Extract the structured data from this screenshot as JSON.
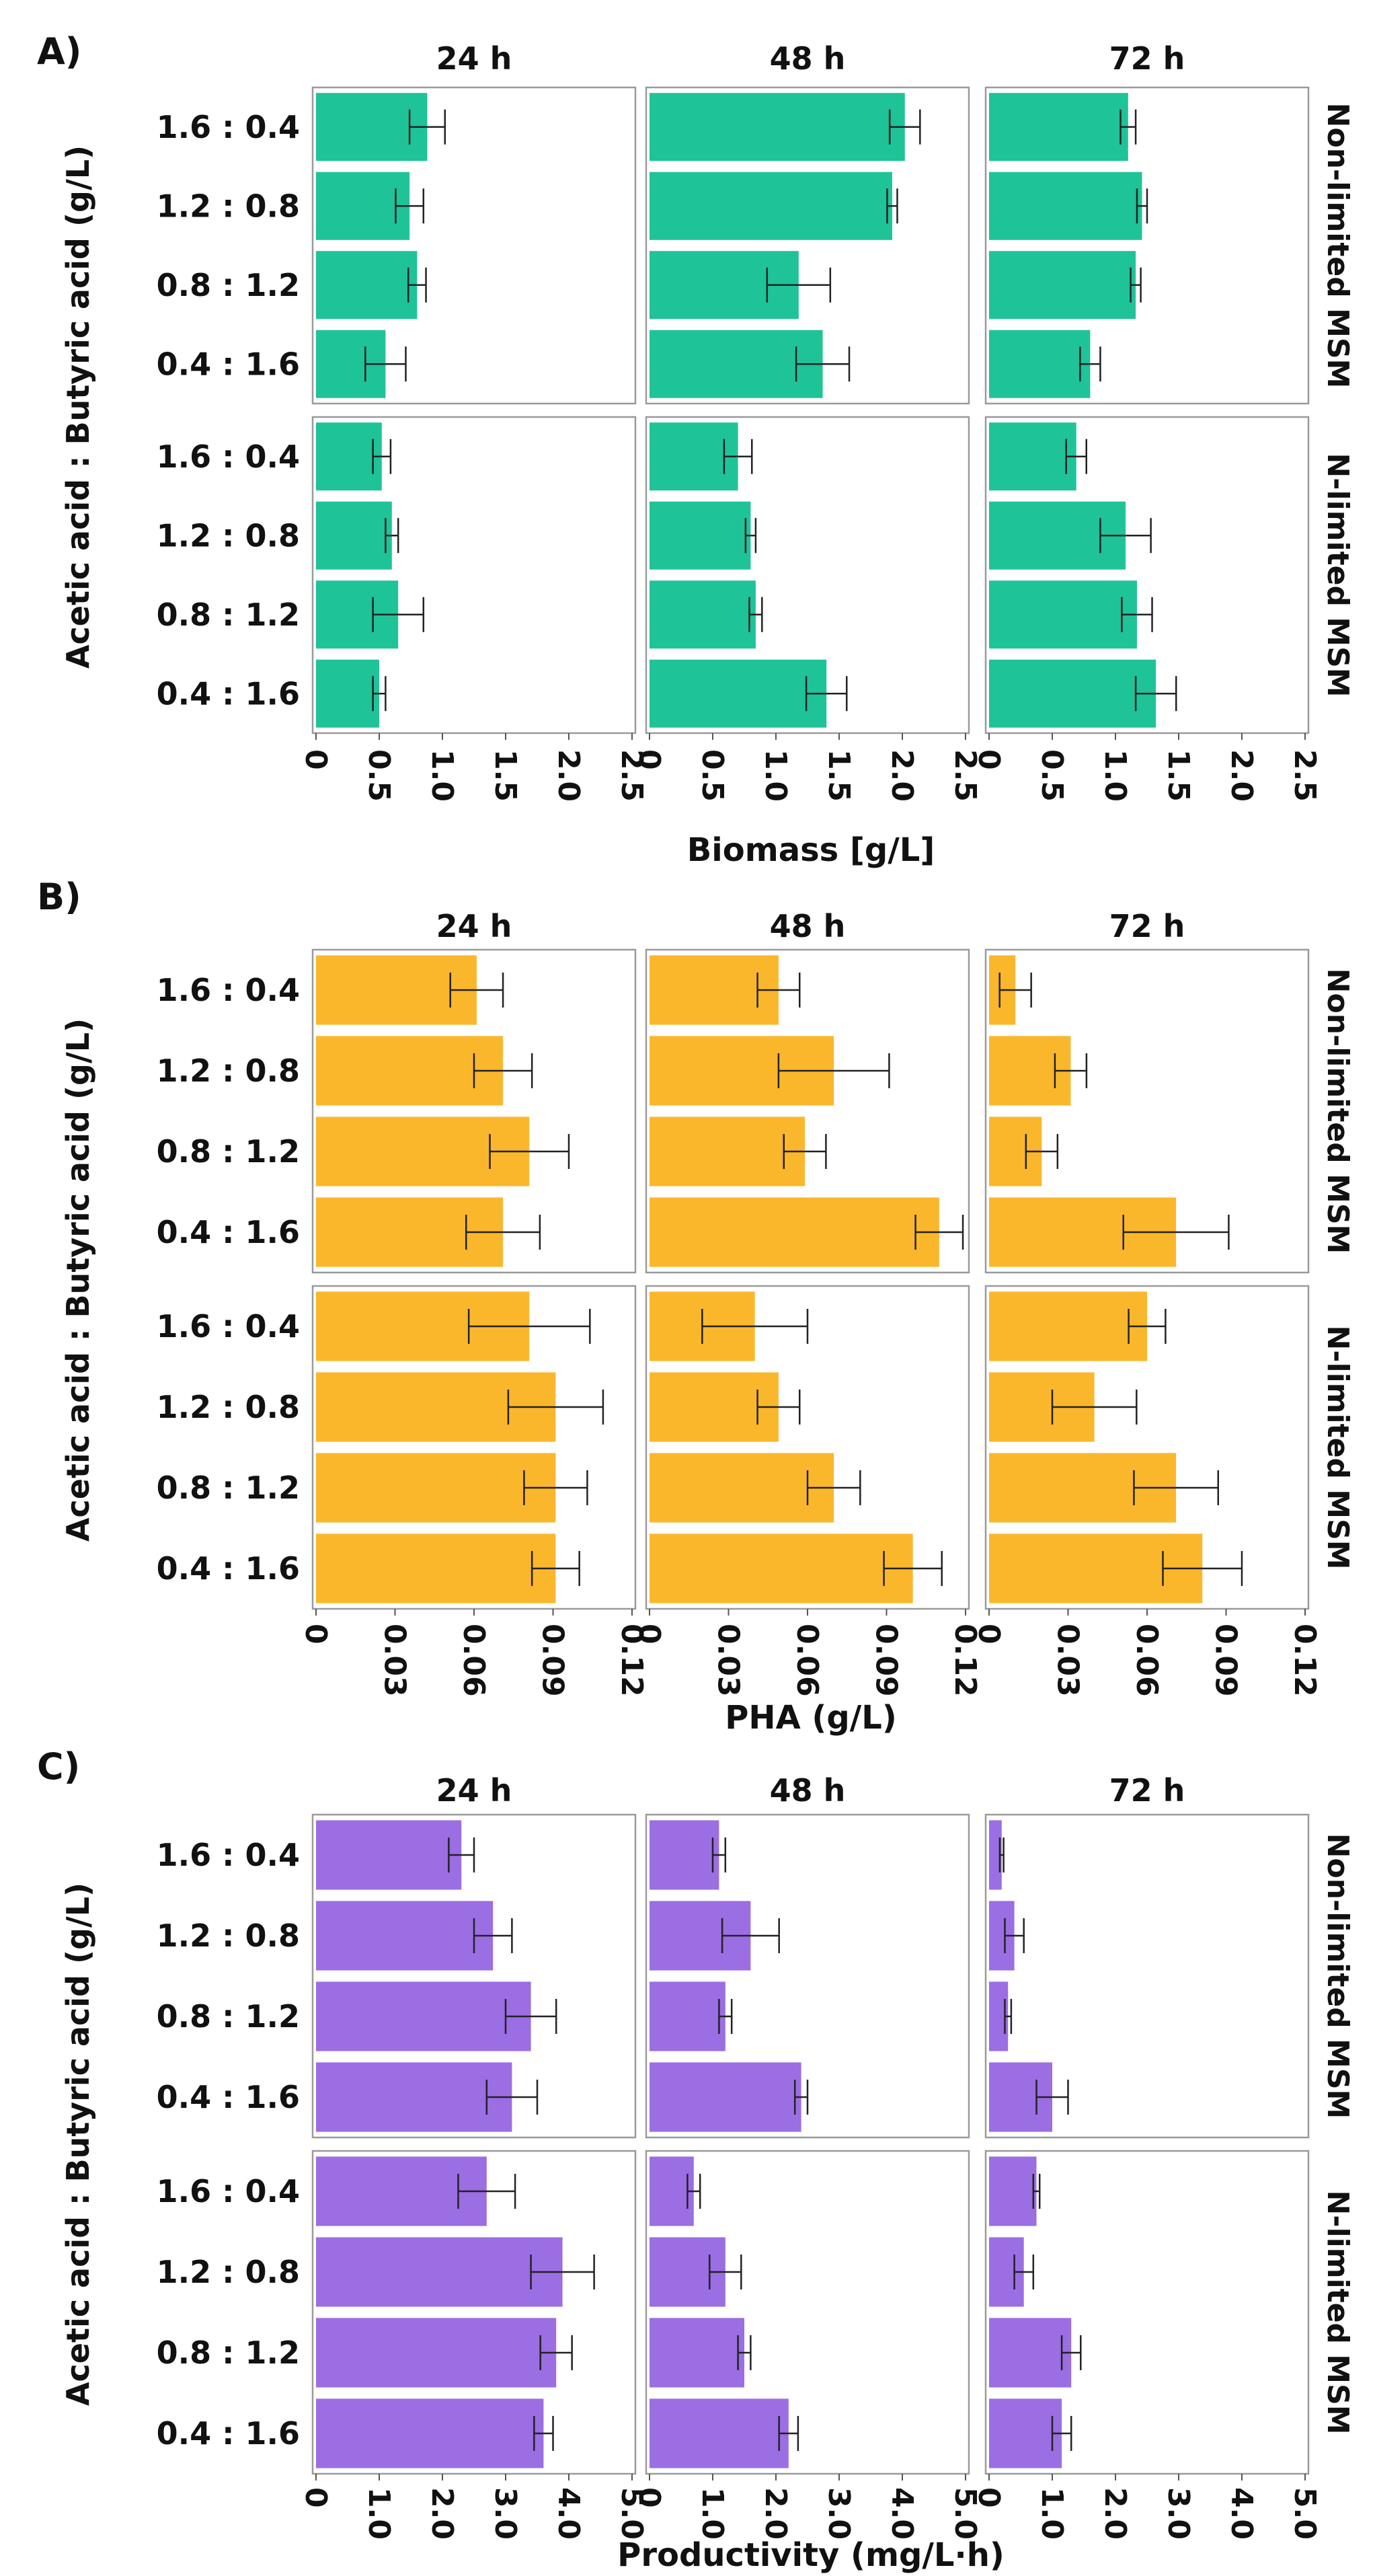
{
  "figure": {
    "ylabel": "Acetic acid : Butyric acid (g/L)",
    "facet_columns": [
      "24 h",
      "48 h",
      "72 h"
    ],
    "facet_rows": [
      "Non-limited MSM",
      "N-limited MSM"
    ],
    "colors": {
      "biomass": "#1fc398",
      "pha": "#fbb72b",
      "productivity": "#9b6ee3",
      "error": "#222222",
      "panel_border": "#9a9a9a"
    }
  },
  "chart_data": [
    {
      "type": "bar",
      "panel_label": "A)",
      "title": "",
      "xlabel": "Biomass [g/L]",
      "ylabel": "Acetic acid : Butyric acid (g/L)",
      "categories": [
        "1.6 : 0.4",
        "1.2 : 0.8",
        "0.8 : 1.2",
        "0.4 : 1.6"
      ],
      "ticks": [
        "0",
        "0.5",
        "1.0",
        "1.5",
        "2.0",
        "2.5"
      ],
      "xlim": [
        0,
        2.5
      ],
      "series": [
        {
          "name": "Non-limited MSM / 24 h",
          "values": [
            0.88,
            0.74,
            0.8,
            0.55
          ],
          "errors": [
            0.14,
            0.11,
            0.07,
            0.16
          ]
        },
        {
          "name": "Non-limited MSM / 48 h",
          "values": [
            2.02,
            1.92,
            1.18,
            1.37
          ],
          "errors": [
            0.12,
            0.04,
            0.25,
            0.21
          ]
        },
        {
          "name": "Non-limited MSM / 72 h",
          "values": [
            1.1,
            1.21,
            1.16,
            0.8
          ],
          "errors": [
            0.06,
            0.04,
            0.04,
            0.08
          ]
        },
        {
          "name": "N-limited MSM / 24 h",
          "values": [
            0.52,
            0.6,
            0.65,
            0.5
          ],
          "errors": [
            0.07,
            0.05,
            0.2,
            0.05
          ]
        },
        {
          "name": "N-limited MSM / 48 h",
          "values": [
            0.7,
            0.8,
            0.84,
            1.4
          ],
          "errors": [
            0.11,
            0.04,
            0.05,
            0.16
          ]
        },
        {
          "name": "N-limited MSM / 72 h",
          "values": [
            0.69,
            1.08,
            1.17,
            1.32
          ],
          "errors": [
            0.08,
            0.2,
            0.12,
            0.16
          ]
        }
      ]
    },
    {
      "type": "bar",
      "panel_label": "B)",
      "title": "",
      "xlabel": "PHA (g/L)",
      "ylabel": "Acetic acid : Butyric acid (g/L)",
      "categories": [
        "1.6 : 0.4",
        "1.2 : 0.8",
        "0.8 : 1.2",
        "0.4 : 1.6"
      ],
      "ticks": [
        "0",
        "0.03",
        "0.06",
        "0.09",
        "0.12"
      ],
      "xlim": [
        0,
        0.12
      ],
      "series": [
        {
          "name": "Non-limited MSM / 24 h",
          "values": [
            0.061,
            0.071,
            0.081,
            0.071
          ],
          "errors": [
            0.01,
            0.011,
            0.015,
            0.014
          ]
        },
        {
          "name": "Non-limited MSM / 48 h",
          "values": [
            0.049,
            0.07,
            0.059,
            0.11
          ],
          "errors": [
            0.008,
            0.021,
            0.008,
            0.009
          ]
        },
        {
          "name": "Non-limited MSM / 72 h",
          "values": [
            0.01,
            0.031,
            0.02,
            0.071
          ],
          "errors": [
            0.006,
            0.006,
            0.006,
            0.02
          ]
        },
        {
          "name": "N-limited MSM / 24 h",
          "values": [
            0.081,
            0.091,
            0.091,
            0.091
          ],
          "errors": [
            0.023,
            0.018,
            0.012,
            0.009
          ]
        },
        {
          "name": "N-limited MSM / 48 h",
          "values": [
            0.04,
            0.049,
            0.07,
            0.1
          ],
          "errors": [
            0.02,
            0.008,
            0.01,
            0.011
          ]
        },
        {
          "name": "N-limited MSM / 72 h",
          "values": [
            0.06,
            0.04,
            0.071,
            0.081
          ],
          "errors": [
            0.007,
            0.016,
            0.016,
            0.015
          ]
        }
      ]
    },
    {
      "type": "bar",
      "panel_label": "C)",
      "title": "",
      "xlabel": "Productivity (mg/L·h)",
      "ylabel": "Acetic acid : Butyric acid (g/L)",
      "categories": [
        "1.6 : 0.4",
        "1.2 : 0.8",
        "0.8 : 1.2",
        "0.4 : 1.6"
      ],
      "ticks": [
        "0",
        "1.0",
        "2.0",
        "3.0",
        "4.0",
        "5.0"
      ],
      "xlim": [
        0,
        5
      ],
      "series": [
        {
          "name": "Non-limited MSM / 24 h",
          "values": [
            2.3,
            2.8,
            3.4,
            3.1
          ],
          "errors": [
            0.2,
            0.3,
            0.4,
            0.4
          ]
        },
        {
          "name": "Non-limited MSM / 48 h",
          "values": [
            1.1,
            1.6,
            1.2,
            2.4
          ],
          "errors": [
            0.1,
            0.45,
            0.1,
            0.1
          ]
        },
        {
          "name": "Non-limited MSM / 72 h",
          "values": [
            0.2,
            0.4,
            0.3,
            1.0
          ],
          "errors": [
            0.03,
            0.15,
            0.05,
            0.25
          ]
        },
        {
          "name": "N-limited MSM / 24 h",
          "values": [
            2.7,
            3.9,
            3.8,
            3.6
          ],
          "errors": [
            0.45,
            0.5,
            0.25,
            0.15
          ]
        },
        {
          "name": "N-limited MSM / 48 h",
          "values": [
            0.7,
            1.2,
            1.5,
            2.2
          ],
          "errors": [
            0.1,
            0.25,
            0.1,
            0.15
          ]
        },
        {
          "name": "N-limited MSM / 72 h",
          "values": [
            0.75,
            0.55,
            1.3,
            1.15
          ],
          "errors": [
            0.05,
            0.15,
            0.15,
            0.15
          ]
        }
      ]
    }
  ]
}
